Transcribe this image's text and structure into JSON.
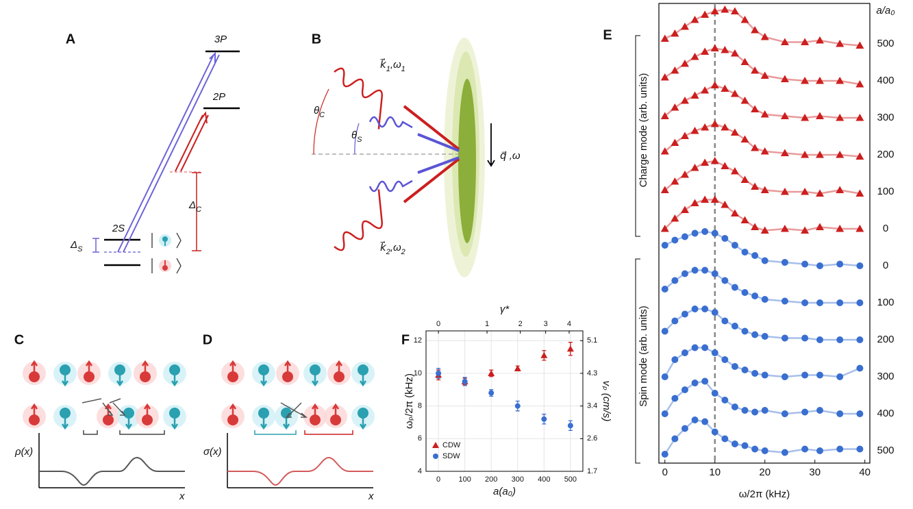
{
  "panel_labels": [
    "A",
    "B",
    "C",
    "D",
    "E",
    "F"
  ],
  "panel_a": {
    "levels": [
      "3P",
      "2P",
      "2S"
    ],
    "delta_s": {
      "text": "Δ",
      "sub": "S"
    },
    "delta_c": {
      "text": "Δ",
      "sub": "C"
    }
  },
  "panel_b": {
    "k1": {
      "text": "k⃗",
      "sub": "1",
      "rest": ",ω",
      "sub2": "1"
    },
    "k2": {
      "text": "k⃗",
      "sub": "2",
      "rest": ",ω",
      "sub2": "2"
    },
    "theta_c": {
      "text": "θ",
      "sub": "C"
    },
    "theta_s": {
      "text": "θ",
      "sub": "S"
    },
    "q": "q⃗ ,ω"
  },
  "panel_c": {
    "ylabel": "ρ(x)",
    "xlabel": "x"
  },
  "panel_d": {
    "ylabel": "σ(x)",
    "xlabel": "x"
  },
  "panel_e": {
    "type": "scatter",
    "xlabel": "ω/2π (kHz)",
    "charge_label": "Charge mode (arb. units)",
    "spin_label": "Spin mode (arb. units)",
    "right_title": "a/a₀",
    "xlim": [
      -1.2,
      41
    ],
    "xticks": [
      0,
      10,
      20,
      30,
      40
    ],
    "reference_line": 10,
    "x": [
      0,
      2,
      4,
      6,
      8,
      10,
      12,
      14,
      16,
      18,
      20,
      24,
      28,
      31,
      35,
      39
    ],
    "charge_color": "#cc1f1f",
    "spin_color": "#3a6fd0",
    "charge_series": [
      {
        "name": "500",
        "values": [
          0.15,
          0.3,
          0.5,
          0.7,
          0.85,
          0.95,
          1.0,
          0.95,
          0.7,
          0.4,
          0.2,
          0.05,
          0.05,
          0.1,
          0.0,
          -0.05
        ]
      },
      {
        "name": "400",
        "values": [
          0.1,
          0.3,
          0.5,
          0.7,
          0.85,
          0.95,
          0.9,
          0.8,
          0.55,
          0.3,
          0.15,
          0.05,
          0.0,
          0.0,
          0.0,
          -0.1
        ]
      },
      {
        "name": "300",
        "values": [
          0.05,
          0.3,
          0.5,
          0.65,
          0.8,
          0.95,
          0.85,
          0.7,
          0.5,
          0.25,
          0.1,
          0.05,
          0.0,
          0.05,
          0.0,
          0.0
        ]
      },
      {
        "name": "200",
        "values": [
          0.1,
          0.35,
          0.55,
          0.7,
          0.8,
          0.9,
          0.8,
          0.65,
          0.45,
          0.2,
          0.1,
          0.05,
          0.0,
          0.0,
          0.0,
          -0.05
        ]
      },
      {
        "name": "100",
        "values": [
          0.05,
          0.3,
          0.5,
          0.7,
          0.85,
          0.9,
          0.75,
          0.6,
          0.35,
          0.15,
          0.05,
          0.0,
          0.0,
          -0.05,
          0.05,
          -0.05
        ]
      },
      {
        "name": "0",
        "values": [
          0.0,
          0.3,
          0.55,
          0.75,
          0.85,
          0.85,
          0.7,
          0.45,
          0.25,
          0.05,
          -0.05,
          0.0,
          -0.05,
          0.05,
          0.0,
          0.0
        ]
      }
    ],
    "spin_series": [
      {
        "name": "0",
        "values": [
          0.6,
          0.75,
          0.85,
          0.95,
          1.0,
          0.95,
          0.8,
          0.6,
          0.4,
          0.3,
          0.15,
          0.1,
          0.05,
          0.0,
          0.05,
          0.0
        ]
      },
      {
        "name": "100",
        "values": [
          0.4,
          0.65,
          0.85,
          0.95,
          0.95,
          0.85,
          0.65,
          0.45,
          0.3,
          0.2,
          0.1,
          0.05,
          0.0,
          0.0,
          0.0,
          0.0
        ]
      },
      {
        "name": "200",
        "values": [
          0.25,
          0.55,
          0.75,
          0.9,
          0.9,
          0.8,
          0.55,
          0.4,
          0.25,
          0.15,
          0.1,
          0.05,
          0.05,
          0.0,
          0.0,
          0.0
        ]
      },
      {
        "name": "300",
        "values": [
          0.0,
          0.5,
          0.7,
          0.85,
          0.85,
          0.7,
          0.5,
          0.3,
          0.2,
          0.1,
          0.05,
          0.0,
          0.05,
          0.05,
          0.0,
          0.25
        ]
      },
      {
        "name": "400",
        "values": [
          0.0,
          0.45,
          0.7,
          0.9,
          0.95,
          0.6,
          0.4,
          0.2,
          0.1,
          0.05,
          0.1,
          0.0,
          0.05,
          0.1,
          0.0,
          0.0
        ]
      },
      {
        "name": "500",
        "values": [
          -0.1,
          0.35,
          0.65,
          0.9,
          0.85,
          0.55,
          0.35,
          0.2,
          0.15,
          0.05,
          0.0,
          -0.05,
          0.05,
          0.0,
          0.05,
          0.05
        ]
      }
    ]
  },
  "chart_data": {
    "type": "scatter",
    "xlabel": "a(a₀)",
    "ylabel": "ωₚ/2π (kHz)",
    "y2label": "vₚ (cm/s)",
    "x2label": "γ*",
    "xlim": [
      -47,
      547
    ],
    "xticks": [
      0,
      100,
      200,
      300,
      400,
      500
    ],
    "x2ticks": [
      {
        "value": 0,
        "label": "0"
      },
      {
        "value": 184,
        "label": "1"
      },
      {
        "value": 310,
        "label": "2"
      },
      {
        "value": 406,
        "label": "3"
      },
      {
        "value": 495,
        "label": "4"
      }
    ],
    "ylim": [
      4,
      12.6
    ],
    "yticks": [
      4,
      6,
      8,
      10,
      12
    ],
    "y2lim": [
      1.7,
      5.355
    ],
    "y2ticks": [
      1.7,
      {
        "value": 2.55,
        "label": "2.6"
      },
      3.4,
      {
        "value": 4.25,
        "label": "4.3"
      },
      5.1
    ],
    "grid": true,
    "legend": "lower-left",
    "x": [
      0,
      100,
      200,
      300,
      400,
      500
    ],
    "series": [
      {
        "name": "CDW",
        "color": "#cc1f1f",
        "marker": "triangle",
        "values": [
          9.9,
          9.5,
          10.0,
          10.3,
          11.1,
          11.5
        ],
        "errors": [
          0.3,
          0.2,
          0.2,
          0.15,
          0.3,
          0.4
        ]
      },
      {
        "name": "SDW",
        "color": "#3a6fd0",
        "marker": "circle",
        "values": [
          10.0,
          9.5,
          8.8,
          8.0,
          7.2,
          6.8
        ],
        "errors": [
          0.3,
          0.25,
          0.2,
          0.3,
          0.3,
          0.3
        ]
      }
    ]
  }
}
